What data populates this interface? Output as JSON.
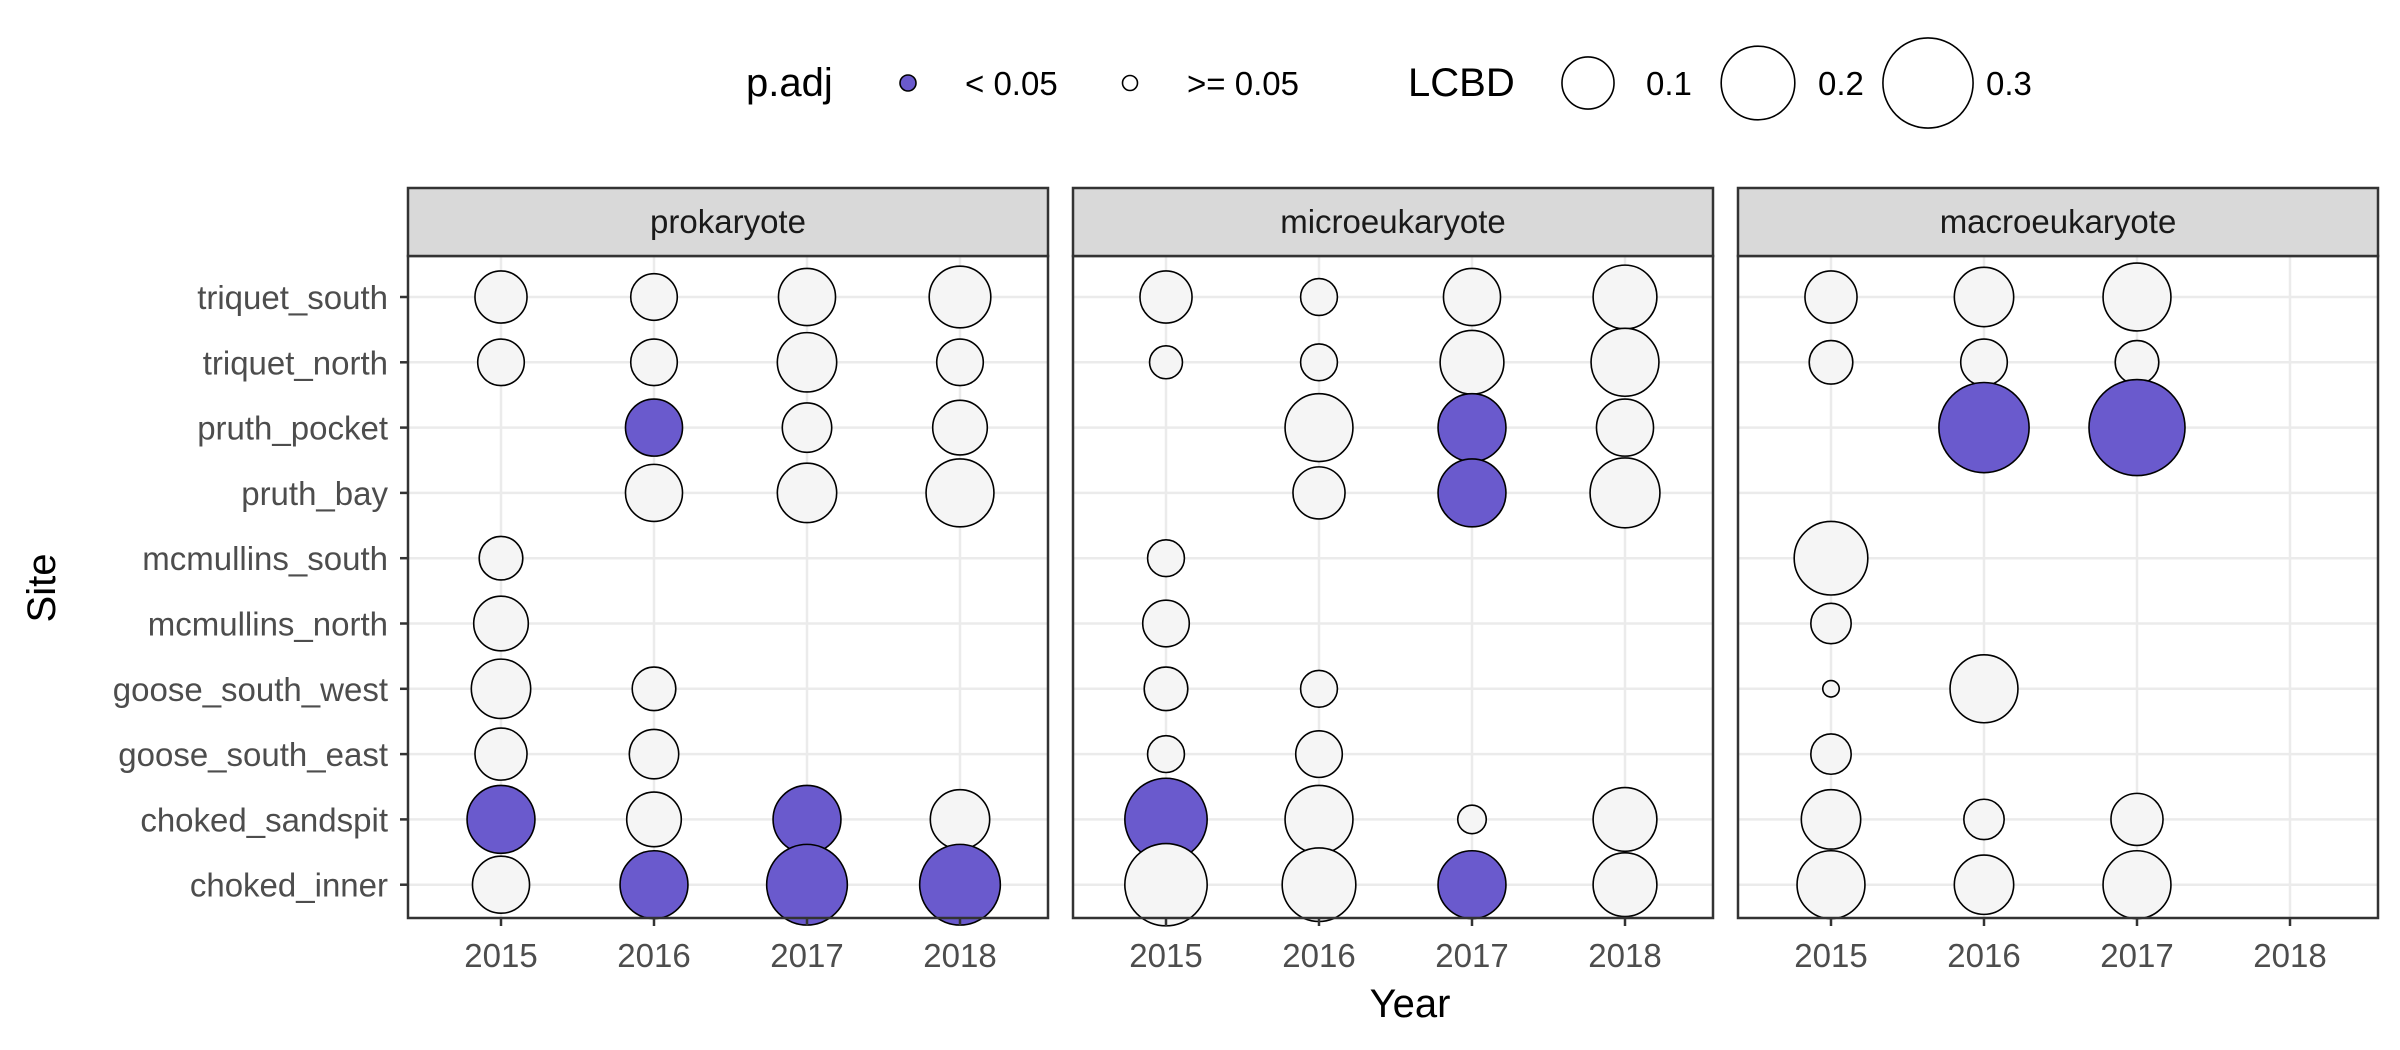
{
  "chart_data": {
    "type": "scatter",
    "xlabel": "Year",
    "ylabel": "Site",
    "x_categories": [
      "2015",
      "2016",
      "2017",
      "2018"
    ],
    "sites": [
      "choked_inner",
      "choked_sandspit",
      "goose_south_east",
      "goose_south_west",
      "mcmullins_north",
      "mcmullins_south",
      "pruth_bay",
      "pruth_pocket",
      "triquet_north",
      "triquet_south"
    ],
    "grid": true,
    "legend": {
      "position": "top",
      "fill_title": "p.adj",
      "fill_items": [
        {
          "label": "< 0.05",
          "color": "#6a5acd"
        },
        {
          "label": ">= 0.05",
          "color": "#ffffff"
        }
      ],
      "size_title": "LCBD",
      "size_items": [
        {
          "label": "0.1",
          "value": 0.1
        },
        {
          "label": "0.2",
          "value": 0.2
        },
        {
          "label": "0.3",
          "value": 0.3
        }
      ]
    },
    "colors": {
      "significant": "#6a5acd",
      "not_significant": "#f5f5f5",
      "strip_fill": "#d9d9d9",
      "grid": "#ebebeb",
      "frame": "#333333"
    },
    "panels": [
      {
        "name": "prokaryote",
        "points": [
          {
            "site": "triquet_south",
            "year": "2015",
            "lcbd": 0.1,
            "significant": false
          },
          {
            "site": "triquet_south",
            "year": "2016",
            "lcbd": 0.08,
            "significant": false
          },
          {
            "site": "triquet_south",
            "year": "2017",
            "lcbd": 0.12,
            "significant": false
          },
          {
            "site": "triquet_south",
            "year": "2018",
            "lcbd": 0.14,
            "significant": false
          },
          {
            "site": "triquet_north",
            "year": "2015",
            "lcbd": 0.08,
            "significant": false
          },
          {
            "site": "triquet_north",
            "year": "2016",
            "lcbd": 0.08,
            "significant": false
          },
          {
            "site": "triquet_north",
            "year": "2017",
            "lcbd": 0.13,
            "significant": false
          },
          {
            "site": "triquet_north",
            "year": "2018",
            "lcbd": 0.08,
            "significant": false
          },
          {
            "site": "pruth_pocket",
            "year": "2016",
            "lcbd": 0.12,
            "significant": true
          },
          {
            "site": "pruth_pocket",
            "year": "2017",
            "lcbd": 0.09,
            "significant": false
          },
          {
            "site": "pruth_pocket",
            "year": "2018",
            "lcbd": 0.11,
            "significant": false
          },
          {
            "site": "pruth_bay",
            "year": "2016",
            "lcbd": 0.12,
            "significant": false
          },
          {
            "site": "pruth_bay",
            "year": "2017",
            "lcbd": 0.13,
            "significant": false
          },
          {
            "site": "pruth_bay",
            "year": "2018",
            "lcbd": 0.17,
            "significant": false
          },
          {
            "site": "mcmullins_south",
            "year": "2015",
            "lcbd": 0.07,
            "significant": false
          },
          {
            "site": "mcmullins_north",
            "year": "2015",
            "lcbd": 0.11,
            "significant": false
          },
          {
            "site": "goose_south_west",
            "year": "2015",
            "lcbd": 0.13,
            "significant": false
          },
          {
            "site": "goose_south_west",
            "year": "2016",
            "lcbd": 0.07,
            "significant": false
          },
          {
            "site": "goose_south_east",
            "year": "2015",
            "lcbd": 0.1,
            "significant": false
          },
          {
            "site": "goose_south_east",
            "year": "2016",
            "lcbd": 0.09,
            "significant": false
          },
          {
            "site": "choked_sandspit",
            "year": "2015",
            "lcbd": 0.17,
            "significant": true
          },
          {
            "site": "choked_sandspit",
            "year": "2016",
            "lcbd": 0.11,
            "significant": false
          },
          {
            "site": "choked_sandspit",
            "year": "2017",
            "lcbd": 0.17,
            "significant": true
          },
          {
            "site": "choked_sandspit",
            "year": "2018",
            "lcbd": 0.13,
            "significant": false
          },
          {
            "site": "choked_inner",
            "year": "2015",
            "lcbd": 0.12,
            "significant": false
          },
          {
            "site": "choked_inner",
            "year": "2016",
            "lcbd": 0.17,
            "significant": true
          },
          {
            "site": "choked_inner",
            "year": "2017",
            "lcbd": 0.24,
            "significant": true
          },
          {
            "site": "choked_inner",
            "year": "2018",
            "lcbd": 0.24,
            "significant": true
          }
        ]
      },
      {
        "name": "microeukaryote",
        "points": [
          {
            "site": "triquet_south",
            "year": "2015",
            "lcbd": 0.1,
            "significant": false
          },
          {
            "site": "triquet_south",
            "year": "2016",
            "lcbd": 0.05,
            "significant": false
          },
          {
            "site": "triquet_south",
            "year": "2017",
            "lcbd": 0.12,
            "significant": false
          },
          {
            "site": "triquet_south",
            "year": "2018",
            "lcbd": 0.15,
            "significant": false
          },
          {
            "site": "triquet_north",
            "year": "2015",
            "lcbd": 0.04,
            "significant": false
          },
          {
            "site": "triquet_north",
            "year": "2016",
            "lcbd": 0.05,
            "significant": false
          },
          {
            "site": "triquet_north",
            "year": "2017",
            "lcbd": 0.15,
            "significant": false
          },
          {
            "site": "triquet_north",
            "year": "2018",
            "lcbd": 0.17,
            "significant": false
          },
          {
            "site": "pruth_pocket",
            "year": "2016",
            "lcbd": 0.17,
            "significant": false
          },
          {
            "site": "pruth_pocket",
            "year": "2017",
            "lcbd": 0.17,
            "significant": true
          },
          {
            "site": "pruth_pocket",
            "year": "2018",
            "lcbd": 0.12,
            "significant": false
          },
          {
            "site": "pruth_bay",
            "year": "2016",
            "lcbd": 0.1,
            "significant": false
          },
          {
            "site": "pruth_bay",
            "year": "2017",
            "lcbd": 0.17,
            "significant": true
          },
          {
            "site": "pruth_bay",
            "year": "2018",
            "lcbd": 0.18,
            "significant": false
          },
          {
            "site": "mcmullins_south",
            "year": "2015",
            "lcbd": 0.05,
            "significant": false
          },
          {
            "site": "mcmullins_north",
            "year": "2015",
            "lcbd": 0.08,
            "significant": false
          },
          {
            "site": "goose_south_west",
            "year": "2015",
            "lcbd": 0.07,
            "significant": false
          },
          {
            "site": "goose_south_west",
            "year": "2016",
            "lcbd": 0.05,
            "significant": false
          },
          {
            "site": "goose_south_east",
            "year": "2015",
            "lcbd": 0.05,
            "significant": false
          },
          {
            "site": "goose_south_east",
            "year": "2016",
            "lcbd": 0.08,
            "significant": false
          },
          {
            "site": "choked_sandspit",
            "year": "2015",
            "lcbd": 0.25,
            "significant": true
          },
          {
            "site": "choked_sandspit",
            "year": "2016",
            "lcbd": 0.17,
            "significant": false
          },
          {
            "site": "choked_sandspit",
            "year": "2017",
            "lcbd": 0.03,
            "significant": false
          },
          {
            "site": "choked_sandspit",
            "year": "2018",
            "lcbd": 0.15,
            "significant": false
          },
          {
            "site": "choked_inner",
            "year": "2015",
            "lcbd": 0.25,
            "significant": false
          },
          {
            "site": "choked_inner",
            "year": "2016",
            "lcbd": 0.2,
            "significant": false
          },
          {
            "site": "choked_inner",
            "year": "2017",
            "lcbd": 0.17,
            "significant": true
          },
          {
            "site": "choked_inner",
            "year": "2018",
            "lcbd": 0.15,
            "significant": false
          }
        ]
      },
      {
        "name": "macroeukaryote",
        "points": [
          {
            "site": "triquet_south",
            "year": "2015",
            "lcbd": 0.1,
            "significant": false
          },
          {
            "site": "triquet_south",
            "year": "2016",
            "lcbd": 0.13,
            "significant": false
          },
          {
            "site": "triquet_south",
            "year": "2017",
            "lcbd": 0.17,
            "significant": false
          },
          {
            "site": "triquet_north",
            "year": "2015",
            "lcbd": 0.07,
            "significant": false
          },
          {
            "site": "triquet_north",
            "year": "2016",
            "lcbd": 0.08,
            "significant": false
          },
          {
            "site": "triquet_north",
            "year": "2017",
            "lcbd": 0.07,
            "significant": false
          },
          {
            "site": "pruth_pocket",
            "year": "2016",
            "lcbd": 0.3,
            "significant": true
          },
          {
            "site": "pruth_pocket",
            "year": "2017",
            "lcbd": 0.34,
            "significant": true
          },
          {
            "site": "mcmullins_south",
            "year": "2015",
            "lcbd": 0.2,
            "significant": false
          },
          {
            "site": "mcmullins_north",
            "year": "2015",
            "lcbd": 0.06,
            "significant": false
          },
          {
            "site": "goose_south_west",
            "year": "2015",
            "lcbd": 0.01,
            "significant": false
          },
          {
            "site": "goose_south_west",
            "year": "2016",
            "lcbd": 0.17,
            "significant": false
          },
          {
            "site": "goose_south_east",
            "year": "2015",
            "lcbd": 0.06,
            "significant": false
          },
          {
            "site": "choked_sandspit",
            "year": "2015",
            "lcbd": 0.13,
            "significant": false
          },
          {
            "site": "choked_sandspit",
            "year": "2016",
            "lcbd": 0.06,
            "significant": false
          },
          {
            "site": "choked_sandspit",
            "year": "2017",
            "lcbd": 0.1,
            "significant": false
          },
          {
            "site": "choked_inner",
            "year": "2015",
            "lcbd": 0.17,
            "significant": false
          },
          {
            "site": "choked_inner",
            "year": "2016",
            "lcbd": 0.13,
            "significant": false
          },
          {
            "site": "choked_inner",
            "year": "2017",
            "lcbd": 0.17,
            "significant": false
          }
        ]
      }
    ]
  }
}
